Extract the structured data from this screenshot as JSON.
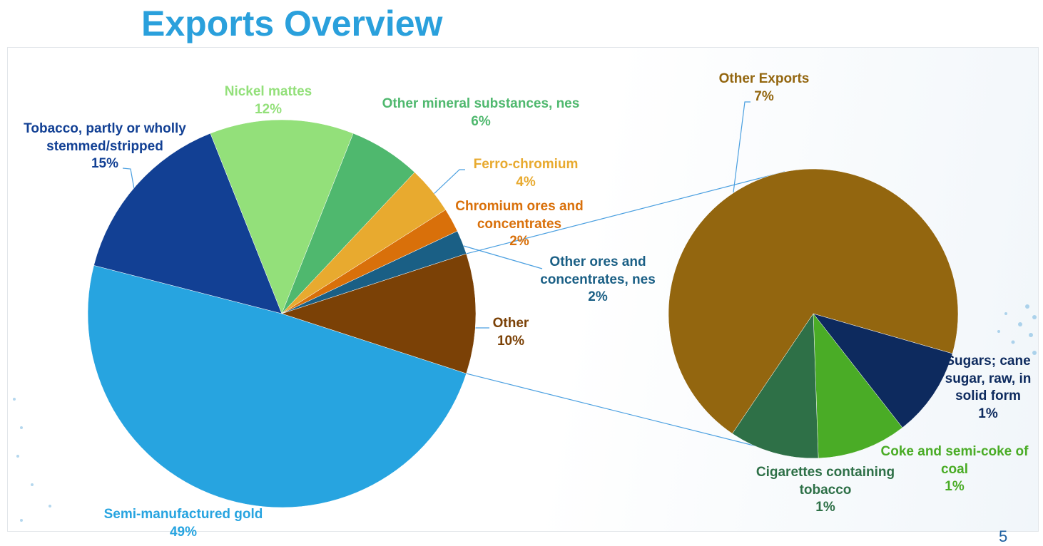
{
  "title": "Exports Overview",
  "page_number": "5",
  "chart_data": [
    {
      "type": "pie",
      "categories": [
        "Semi-manufactured gold",
        "Tobacco, partly or wholly stemmed/stripped",
        "Nickel mattes",
        "Other mineral substances, nes",
        "Ferro-chromium",
        "Chromium ores and concentrates",
        "Other ores and concentrates, nes",
        "Other"
      ],
      "values": [
        49,
        15,
        12,
        6,
        4,
        2,
        2,
        10
      ],
      "value_labels": [
        "49%",
        "15%",
        "12%",
        "6%",
        "4%",
        "2%",
        "2%",
        "10%"
      ],
      "colors": [
        "#27a4e0",
        "#124094",
        "#93e07a",
        "#4fb86e",
        "#e8aa2f",
        "#d9700a",
        "#1a5f85",
        "#7b4106"
      ]
    },
    {
      "type": "pie",
      "categories": [
        "Sugars; cane sugar, raw, in solid form",
        "Coke and semi-coke of coal",
        "Cigarettes containing tobacco",
        "Other Exports"
      ],
      "values": [
        1,
        1,
        1,
        7
      ],
      "value_labels": [
        "1%",
        "1%",
        "1%",
        "7%"
      ],
      "colors": [
        "#0d2a5e",
        "#4aac26",
        "#2e7047",
        "#93660f"
      ]
    }
  ]
}
